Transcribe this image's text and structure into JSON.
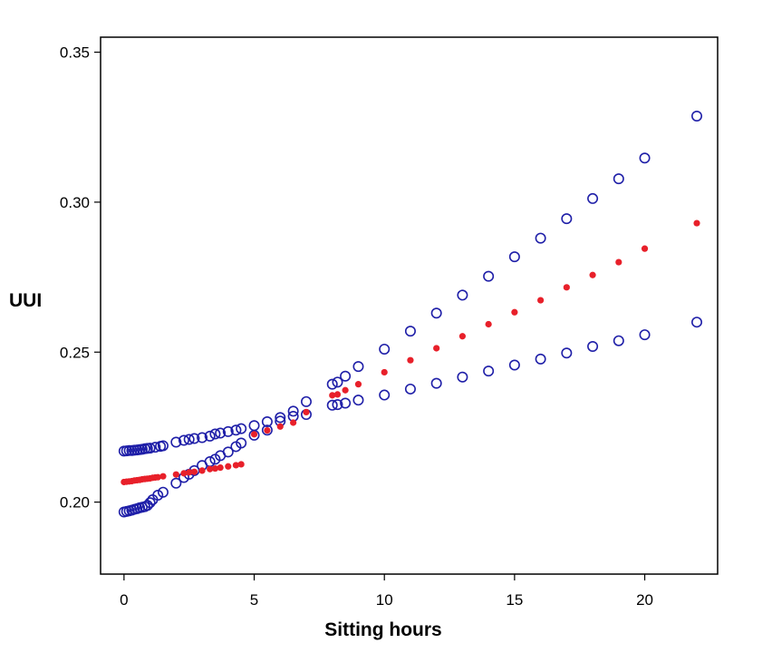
{
  "chart_data": {
    "type": "scatter",
    "title": "",
    "xlabel": "Sitting hours",
    "ylabel": "UUI",
    "xlim": [
      -0.9,
      22.8
    ],
    "ylim": [
      0.176,
      0.355
    ],
    "xticks": [
      0,
      5,
      10,
      15,
      20
    ],
    "yticks": [
      0.2,
      0.25,
      0.3,
      0.35
    ],
    "xtick_labels": [
      "0",
      "5",
      "10",
      "15",
      "20"
    ],
    "ytick_labels": [
      "0.20",
      "0.25",
      "0.30",
      "0.35"
    ],
    "grid": false,
    "legend": "none",
    "series": [
      {
        "marker": "filled-circle",
        "color": "#e8202a",
        "points": [
          [
            0,
            0.2067
          ],
          [
            0.1,
            0.2068
          ],
          [
            0.2,
            0.2069
          ],
          [
            0.3,
            0.207
          ],
          [
            0.4,
            0.2072
          ],
          [
            0.5,
            0.2073
          ],
          [
            0.6,
            0.2074
          ],
          [
            0.7,
            0.2076
          ],
          [
            0.8,
            0.2077
          ],
          [
            0.9,
            0.2078
          ],
          [
            1.0,
            0.2079
          ],
          [
            1.1,
            0.2081
          ],
          [
            1.2,
            0.2082
          ],
          [
            1.3,
            0.2083
          ],
          [
            1.5,
            0.2086
          ],
          [
            2.0,
            0.2092
          ],
          [
            2.3,
            0.2096
          ],
          [
            2.5,
            0.2099
          ],
          [
            2.7,
            0.2101
          ],
          [
            3.0,
            0.2105
          ],
          [
            3.3,
            0.211
          ],
          [
            3.5,
            0.2112
          ],
          [
            3.7,
            0.2115
          ],
          [
            4.0,
            0.2119
          ],
          [
            4.3,
            0.2123
          ],
          [
            4.5,
            0.2126
          ],
          [
            5.0,
            0.2226
          ],
          [
            5.5,
            0.2239
          ],
          [
            6.0,
            0.2252
          ],
          [
            6.5,
            0.2265
          ],
          [
            7.0,
            0.23
          ],
          [
            8.0,
            0.2356
          ],
          [
            8.2,
            0.2359
          ],
          [
            8.5,
            0.2373
          ],
          [
            9.0,
            0.2393
          ],
          [
            10,
            0.2433
          ],
          [
            11,
            0.2473
          ],
          [
            12,
            0.2513
          ],
          [
            13,
            0.2553
          ],
          [
            14,
            0.2593
          ],
          [
            15,
            0.2633
          ],
          [
            16,
            0.2673
          ],
          [
            17,
            0.2716
          ],
          [
            18,
            0.2757
          ],
          [
            19,
            0.28
          ],
          [
            20,
            0.2845
          ],
          [
            22,
            0.293
          ]
        ]
      },
      {
        "name": "",
        "marker": "open-circle",
        "color": "#1f1fa8",
        "points": [
          [
            0,
            0.217
          ],
          [
            0.1,
            0.2171
          ],
          [
            0.2,
            0.2172
          ],
          [
            0.3,
            0.2172
          ],
          [
            0.4,
            0.2173
          ],
          [
            0.5,
            0.2174
          ],
          [
            0.6,
            0.2175
          ],
          [
            0.7,
            0.2176
          ],
          [
            0.8,
            0.2178
          ],
          [
            0.9,
            0.2179
          ],
          [
            1.0,
            0.218
          ],
          [
            1.2,
            0.2183
          ],
          [
            1.4,
            0.2186
          ],
          [
            1.5,
            0.2188
          ],
          [
            2.0,
            0.22
          ],
          [
            2.3,
            0.2206
          ],
          [
            2.5,
            0.2209
          ],
          [
            2.7,
            0.2212
          ],
          [
            3.0,
            0.2215
          ],
          [
            3.3,
            0.222
          ],
          [
            3.5,
            0.2227
          ],
          [
            3.7,
            0.223
          ],
          [
            4.0,
            0.2235
          ],
          [
            4.3,
            0.224
          ],
          [
            4.5,
            0.2245
          ],
          [
            5.0,
            0.2255
          ],
          [
            5.5,
            0.2268
          ],
          [
            6.0,
            0.2282
          ],
          [
            6.5,
            0.2303
          ],
          [
            7.0,
            0.2335
          ],
          [
            8.0,
            0.2393
          ],
          [
            8.2,
            0.24
          ],
          [
            8.5,
            0.242
          ],
          [
            9.0,
            0.2452
          ],
          [
            10,
            0.251
          ],
          [
            11,
            0.257
          ],
          [
            12,
            0.263
          ],
          [
            13,
            0.269
          ],
          [
            14,
            0.2753
          ],
          [
            15,
            0.2818
          ],
          [
            16,
            0.288
          ],
          [
            17,
            0.2945
          ],
          [
            18,
            0.3012
          ],
          [
            19,
            0.3078
          ],
          [
            20,
            0.3147
          ],
          [
            22,
            0.3287
          ]
        ]
      },
      {
        "name": "",
        "marker": "open-circle",
        "color": "#1f1fa8",
        "points": [
          [
            0,
            0.1967
          ],
          [
            0.1,
            0.1969
          ],
          [
            0.2,
            0.1971
          ],
          [
            0.3,
            0.1973
          ],
          [
            0.4,
            0.1976
          ],
          [
            0.5,
            0.1978
          ],
          [
            0.6,
            0.1981
          ],
          [
            0.7,
            0.1983
          ],
          [
            0.8,
            0.1985
          ],
          [
            0.9,
            0.1989
          ],
          [
            1.0,
            0.1998
          ],
          [
            1.1,
            0.2008
          ],
          [
            1.3,
            0.2023
          ],
          [
            1.5,
            0.2033
          ],
          [
            2.0,
            0.2063
          ],
          [
            2.3,
            0.2082
          ],
          [
            2.5,
            0.2093
          ],
          [
            2.7,
            0.2105
          ],
          [
            3.0,
            0.2122
          ],
          [
            3.3,
            0.2135
          ],
          [
            3.5,
            0.2143
          ],
          [
            3.7,
            0.2155
          ],
          [
            4.0,
            0.2167
          ],
          [
            4.3,
            0.2185
          ],
          [
            4.5,
            0.2197
          ],
          [
            5.0,
            0.2223
          ],
          [
            5.5,
            0.224
          ],
          [
            6.0,
            0.227
          ],
          [
            6.5,
            0.2286
          ],
          [
            7.0,
            0.2292
          ],
          [
            8.0,
            0.2323
          ],
          [
            8.2,
            0.2325
          ],
          [
            8.5,
            0.233
          ],
          [
            9.0,
            0.234
          ],
          [
            10,
            0.2357
          ],
          [
            11,
            0.2377
          ],
          [
            12,
            0.2396
          ],
          [
            13,
            0.2417
          ],
          [
            14,
            0.2437
          ],
          [
            15,
            0.2457
          ],
          [
            16,
            0.2477
          ],
          [
            17,
            0.2497
          ],
          [
            18,
            0.2519
          ],
          [
            19,
            0.2538
          ],
          [
            20,
            0.2558
          ],
          [
            22,
            0.26
          ]
        ]
      }
    ]
  }
}
